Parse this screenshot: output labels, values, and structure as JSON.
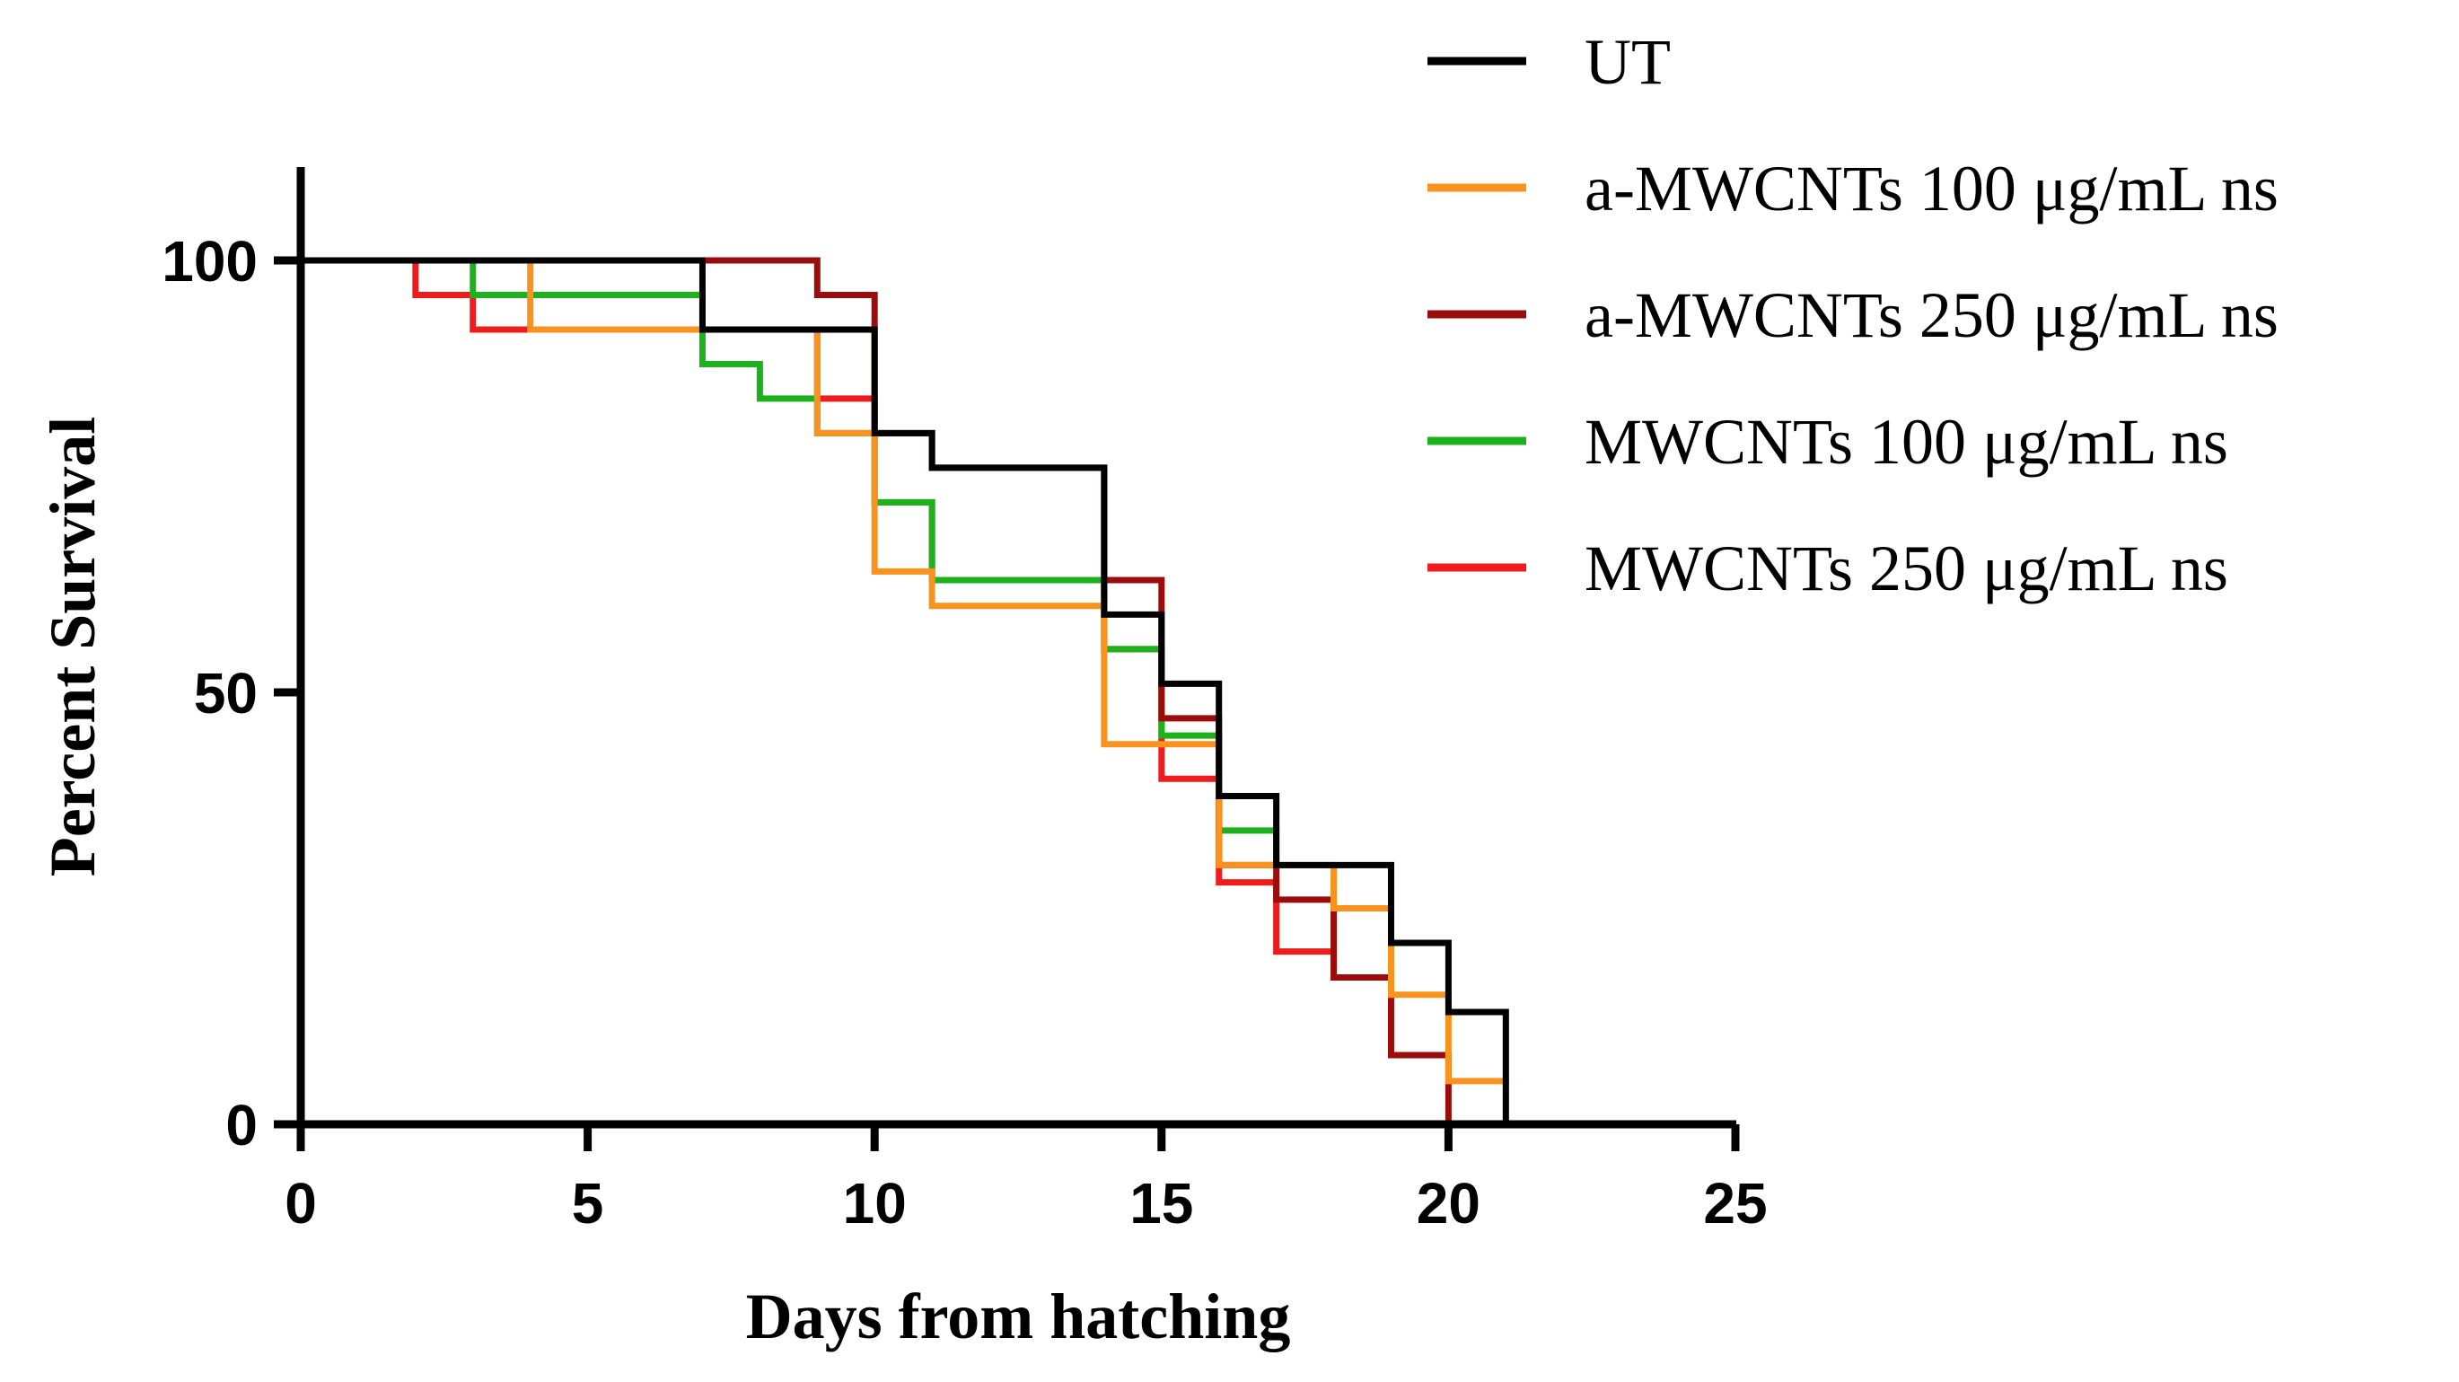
{
  "chart_data": {
    "type": "line",
    "subtype": "kaplan-meier survival (step)",
    "xlabel": "Days from hatching",
    "ylabel": "Percent Survival",
    "xlim": [
      0,
      25
    ],
    "ylim": [
      0,
      100
    ],
    "x_ticks": [
      "0",
      "5",
      "10",
      "15",
      "20",
      "25"
    ],
    "y_ticks": [
      "0",
      "50",
      "100"
    ],
    "grid": false,
    "legend_position": "top-right",
    "series": [
      {
        "name": "UT",
        "color": "#000000",
        "steps": [
          [
            0,
            100
          ],
          [
            7,
            92
          ],
          [
            10,
            80
          ],
          [
            11,
            76
          ],
          [
            14,
            59
          ],
          [
            15,
            51
          ],
          [
            16,
            38
          ],
          [
            17,
            30
          ],
          [
            19,
            21
          ],
          [
            20,
            13
          ],
          [
            21,
            0
          ]
        ]
      },
      {
        "name": "a-MWCNTs 100 μg/mL ns",
        "color": "#f7931e",
        "steps": [
          [
            0,
            100
          ],
          [
            4,
            92
          ],
          [
            9,
            80
          ],
          [
            10,
            64
          ],
          [
            11,
            60
          ],
          [
            14,
            44
          ],
          [
            16,
            30
          ],
          [
            18,
            25
          ],
          [
            19,
            15
          ],
          [
            20,
            5
          ],
          [
            21,
            5
          ]
        ]
      },
      {
        "name": "a-MWCNTs 250 μg/mL ns",
        "color": "#9b0d0d",
        "steps": [
          [
            0,
            100
          ],
          [
            9,
            96
          ],
          [
            10,
            80
          ],
          [
            11,
            76
          ],
          [
            14,
            63
          ],
          [
            15,
            47
          ],
          [
            16,
            30
          ],
          [
            17,
            26
          ],
          [
            18,
            17
          ],
          [
            19,
            8
          ],
          [
            20,
            0
          ]
        ]
      },
      {
        "name": "MWCNTs 100 μg/mL ns",
        "color": "#1db11d",
        "steps": [
          [
            0,
            100
          ],
          [
            3,
            96
          ],
          [
            7,
            88
          ],
          [
            8,
            84
          ],
          [
            9,
            80
          ],
          [
            10,
            72
          ],
          [
            11,
            63
          ],
          [
            14,
            55
          ],
          [
            15,
            45
          ],
          [
            16,
            34
          ],
          [
            17,
            30
          ]
        ]
      },
      {
        "name": "MWCNTs 250 μg/mL ns",
        "color": "#ee1c1c",
        "steps": [
          [
            0,
            100
          ],
          [
            2,
            96
          ],
          [
            3,
            92
          ],
          [
            4,
            92
          ],
          [
            9,
            84
          ],
          [
            10,
            72
          ],
          [
            11,
            63
          ],
          [
            14,
            55
          ],
          [
            15,
            40
          ],
          [
            16,
            28
          ],
          [
            17,
            20
          ],
          [
            18,
            17
          ]
        ]
      }
    ]
  }
}
